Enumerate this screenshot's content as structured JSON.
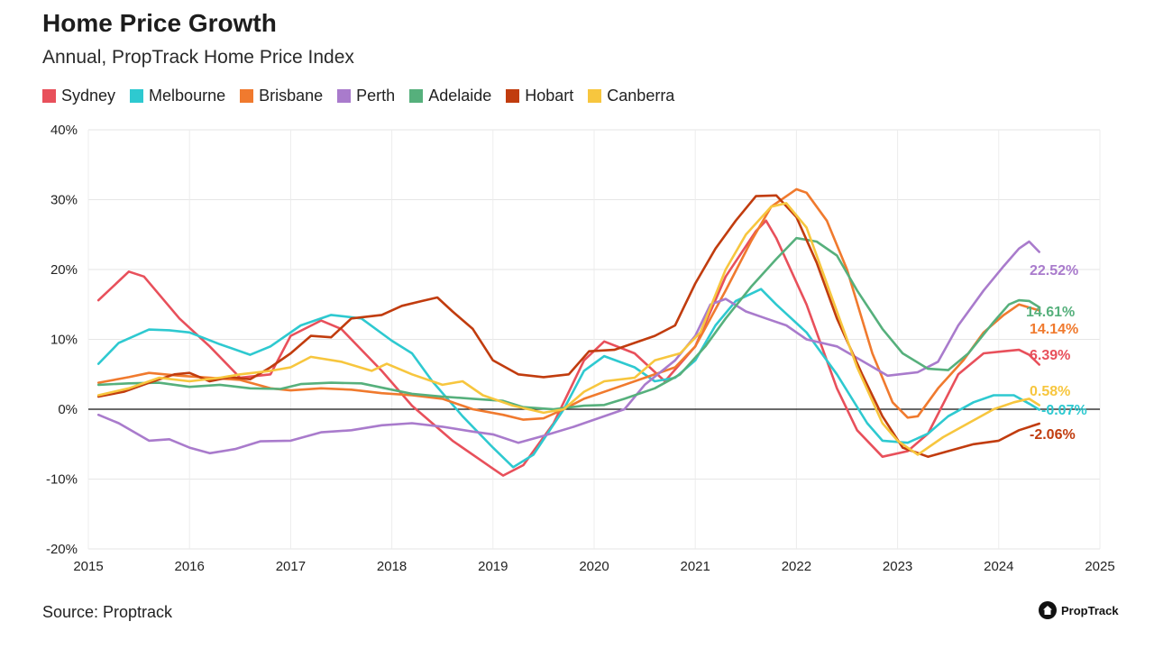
{
  "header": {
    "title": "Home Price Growth",
    "subtitle": "Annual, PropTrack Home Price Index"
  },
  "footer": {
    "source": "Source: Proptrack",
    "brand": "PropTrack",
    "brand_icon": "house-icon"
  },
  "chart_data": {
    "type": "line",
    "title": "Home Price Growth",
    "subtitle": "Annual, PropTrack Home Price Index",
    "xlim": [
      2015,
      2025
    ],
    "ylim": [
      -20,
      40
    ],
    "x_ticks": [
      "2015",
      "2016",
      "2017",
      "2018",
      "2019",
      "2020",
      "2021",
      "2022",
      "2023",
      "2024",
      "2025"
    ],
    "y_ticks": [
      "40%",
      "30%",
      "20%",
      "10%",
      "0%",
      "-10%",
      "-20%"
    ],
    "grid": true,
    "legend_position": "top-left",
    "series": [
      {
        "name": "Sydney",
        "color": "#e8505b",
        "end_label": "6.39%",
        "points": [
          [
            2015.1,
            15.6
          ],
          [
            2015.4,
            19.7
          ],
          [
            2015.55,
            19.0
          ],
          [
            2015.9,
            13.0
          ],
          [
            2016.2,
            9.0
          ],
          [
            2016.5,
            4.5
          ],
          [
            2016.8,
            5.0
          ],
          [
            2017.0,
            10.5
          ],
          [
            2017.3,
            12.7
          ],
          [
            2017.5,
            11.5
          ],
          [
            2017.9,
            5.5
          ],
          [
            2018.2,
            0.5
          ],
          [
            2018.6,
            -4.5
          ],
          [
            2019.0,
            -8.5
          ],
          [
            2019.1,
            -9.5
          ],
          [
            2019.3,
            -8.0
          ],
          [
            2019.6,
            -2.0
          ],
          [
            2019.9,
            7.0
          ],
          [
            2020.1,
            9.7
          ],
          [
            2020.4,
            8.0
          ],
          [
            2020.7,
            4.0
          ],
          [
            2021.0,
            9.0
          ],
          [
            2021.3,
            19.0
          ],
          [
            2021.6,
            25.5
          ],
          [
            2021.7,
            27.0
          ],
          [
            2021.8,
            24.5
          ],
          [
            2022.1,
            15.0
          ],
          [
            2022.4,
            3.0
          ],
          [
            2022.6,
            -3.0
          ],
          [
            2022.85,
            -6.8
          ],
          [
            2023.1,
            -6.0
          ],
          [
            2023.3,
            -3.5
          ],
          [
            2023.6,
            5.0
          ],
          [
            2023.85,
            8.0
          ],
          [
            2024.05,
            8.3
          ],
          [
            2024.2,
            8.5
          ],
          [
            2024.3,
            7.8
          ],
          [
            2024.4,
            6.39
          ]
        ]
      },
      {
        "name": "Melbourne",
        "color": "#2ec9d0",
        "end_label": "-0.07%",
        "points": [
          [
            2015.1,
            6.5
          ],
          [
            2015.3,
            9.5
          ],
          [
            2015.6,
            11.4
          ],
          [
            2015.8,
            11.3
          ],
          [
            2016.0,
            11.0
          ],
          [
            2016.3,
            9.3
          ],
          [
            2016.6,
            7.8
          ],
          [
            2016.8,
            9.0
          ],
          [
            2017.1,
            12.0
          ],
          [
            2017.4,
            13.5
          ],
          [
            2017.7,
            13.0
          ],
          [
            2018.0,
            9.8
          ],
          [
            2018.2,
            8.0
          ],
          [
            2018.4,
            4.0
          ],
          [
            2018.7,
            -1.0
          ],
          [
            2019.0,
            -5.5
          ],
          [
            2019.2,
            -8.3
          ],
          [
            2019.4,
            -6.5
          ],
          [
            2019.7,
            0.0
          ],
          [
            2019.9,
            5.5
          ],
          [
            2020.1,
            7.6
          ],
          [
            2020.4,
            6.0
          ],
          [
            2020.6,
            4.0
          ],
          [
            2020.8,
            4.5
          ],
          [
            2021.0,
            7.0
          ],
          [
            2021.2,
            12.0
          ],
          [
            2021.4,
            15.5
          ],
          [
            2021.65,
            17.2
          ],
          [
            2021.8,
            15.0
          ],
          [
            2022.1,
            11.0
          ],
          [
            2022.4,
            5.0
          ],
          [
            2022.7,
            -2.0
          ],
          [
            2022.85,
            -4.5
          ],
          [
            2023.1,
            -4.8
          ],
          [
            2023.3,
            -3.5
          ],
          [
            2023.5,
            -1.0
          ],
          [
            2023.75,
            1.0
          ],
          [
            2023.95,
            2.0
          ],
          [
            2024.15,
            2.0
          ],
          [
            2024.3,
            0.8
          ],
          [
            2024.4,
            -0.07
          ]
        ]
      },
      {
        "name": "Brisbane",
        "color": "#f07a2e",
        "end_label": "14.14%",
        "points": [
          [
            2015.1,
            3.8
          ],
          [
            2015.4,
            4.6
          ],
          [
            2015.6,
            5.2
          ],
          [
            2015.9,
            4.8
          ],
          [
            2016.2,
            4.5
          ],
          [
            2016.5,
            4.2
          ],
          [
            2016.8,
            3.0
          ],
          [
            2017.0,
            2.7
          ],
          [
            2017.3,
            3.0
          ],
          [
            2017.6,
            2.8
          ],
          [
            2017.9,
            2.3
          ],
          [
            2018.2,
            2.0
          ],
          [
            2018.5,
            1.5
          ],
          [
            2018.8,
            0.0
          ],
          [
            2019.1,
            -0.8
          ],
          [
            2019.3,
            -1.5
          ],
          [
            2019.5,
            -1.3
          ],
          [
            2019.7,
            0.0
          ],
          [
            2019.9,
            1.5
          ],
          [
            2020.2,
            3.0
          ],
          [
            2020.5,
            4.5
          ],
          [
            2020.8,
            6.0
          ],
          [
            2021.0,
            9.0
          ],
          [
            2021.3,
            17.0
          ],
          [
            2021.55,
            24.0
          ],
          [
            2021.75,
            29.0
          ],
          [
            2022.0,
            31.5
          ],
          [
            2022.1,
            31.0
          ],
          [
            2022.3,
            27.0
          ],
          [
            2022.5,
            20.0
          ],
          [
            2022.75,
            8.0
          ],
          [
            2022.95,
            1.0
          ],
          [
            2023.1,
            -1.2
          ],
          [
            2023.2,
            -1.0
          ],
          [
            2023.4,
            3.0
          ],
          [
            2023.65,
            7.0
          ],
          [
            2023.85,
            11.0
          ],
          [
            2024.05,
            13.5
          ],
          [
            2024.2,
            15.0
          ],
          [
            2024.4,
            14.14
          ]
        ]
      },
      {
        "name": "Perth",
        "color": "#a97bcc",
        "end_label": "22.52%",
        "points": [
          [
            2015.1,
            -0.8
          ],
          [
            2015.3,
            -2.0
          ],
          [
            2015.6,
            -4.5
          ],
          [
            2015.8,
            -4.3
          ],
          [
            2016.0,
            -5.5
          ],
          [
            2016.2,
            -6.3
          ],
          [
            2016.45,
            -5.7
          ],
          [
            2016.7,
            -4.6
          ],
          [
            2017.0,
            -4.5
          ],
          [
            2017.3,
            -3.3
          ],
          [
            2017.6,
            -3.0
          ],
          [
            2017.9,
            -2.3
          ],
          [
            2018.2,
            -2.0
          ],
          [
            2018.5,
            -2.5
          ],
          [
            2018.8,
            -3.2
          ],
          [
            2019.0,
            -3.6
          ],
          [
            2019.25,
            -4.8
          ],
          [
            2019.5,
            -3.8
          ],
          [
            2019.8,
            -2.5
          ],
          [
            2020.0,
            -1.5
          ],
          [
            2020.3,
            0.0
          ],
          [
            2020.5,
            3.5
          ],
          [
            2020.8,
            7.0
          ],
          [
            2021.0,
            10.5
          ],
          [
            2021.15,
            15.0
          ],
          [
            2021.3,
            15.8
          ],
          [
            2021.5,
            14.0
          ],
          [
            2021.7,
            13.0
          ],
          [
            2021.9,
            12.0
          ],
          [
            2022.1,
            10.0
          ],
          [
            2022.4,
            9.0
          ],
          [
            2022.7,
            6.5
          ],
          [
            2022.9,
            4.8
          ],
          [
            2023.2,
            5.3
          ],
          [
            2023.4,
            6.8
          ],
          [
            2023.6,
            12.0
          ],
          [
            2023.85,
            17.0
          ],
          [
            2024.05,
            20.5
          ],
          [
            2024.2,
            23.0
          ],
          [
            2024.3,
            24.0
          ],
          [
            2024.4,
            22.52
          ]
        ]
      },
      {
        "name": "Adelaide",
        "color": "#56b07c",
        "end_label": "14.61%",
        "points": [
          [
            2015.1,
            3.5
          ],
          [
            2015.4,
            3.7
          ],
          [
            2015.7,
            3.8
          ],
          [
            2016.0,
            3.2
          ],
          [
            2016.3,
            3.5
          ],
          [
            2016.6,
            3.0
          ],
          [
            2016.9,
            2.9
          ],
          [
            2017.1,
            3.6
          ],
          [
            2017.4,
            3.8
          ],
          [
            2017.7,
            3.7
          ],
          [
            2018.0,
            2.8
          ],
          [
            2018.2,
            2.2
          ],
          [
            2018.5,
            1.8
          ],
          [
            2018.8,
            1.5
          ],
          [
            2019.1,
            1.2
          ],
          [
            2019.3,
            0.3
          ],
          [
            2019.6,
            0.0
          ],
          [
            2019.9,
            0.5
          ],
          [
            2020.1,
            0.6
          ],
          [
            2020.3,
            1.5
          ],
          [
            2020.6,
            3.0
          ],
          [
            2020.85,
            5.0
          ],
          [
            2021.1,
            9.0
          ],
          [
            2021.3,
            13.0
          ],
          [
            2021.55,
            17.5
          ],
          [
            2021.8,
            21.5
          ],
          [
            2022.0,
            24.5
          ],
          [
            2022.2,
            24.0
          ],
          [
            2022.4,
            22.0
          ],
          [
            2022.6,
            17.0
          ],
          [
            2022.85,
            11.5
          ],
          [
            2023.05,
            8.0
          ],
          [
            2023.3,
            5.8
          ],
          [
            2023.5,
            5.6
          ],
          [
            2023.7,
            8.0
          ],
          [
            2023.95,
            12.5
          ],
          [
            2024.1,
            15.0
          ],
          [
            2024.2,
            15.6
          ],
          [
            2024.3,
            15.5
          ],
          [
            2024.4,
            14.61
          ]
        ]
      },
      {
        "name": "Hobart",
        "color": "#c13c0e",
        "end_label": "-2.06%",
        "points": [
          [
            2015.1,
            1.8
          ],
          [
            2015.35,
            2.5
          ],
          [
            2015.6,
            3.8
          ],
          [
            2015.85,
            5.0
          ],
          [
            2016.0,
            5.2
          ],
          [
            2016.2,
            4.0
          ],
          [
            2016.4,
            4.6
          ],
          [
            2016.6,
            4.3
          ],
          [
            2016.8,
            6.0
          ],
          [
            2017.0,
            8.0
          ],
          [
            2017.2,
            10.5
          ],
          [
            2017.4,
            10.3
          ],
          [
            2017.6,
            13.0
          ],
          [
            2017.9,
            13.5
          ],
          [
            2018.1,
            14.8
          ],
          [
            2018.3,
            15.5
          ],
          [
            2018.45,
            16.0
          ],
          [
            2018.6,
            14.0
          ],
          [
            2018.8,
            11.5
          ],
          [
            2019.0,
            7.0
          ],
          [
            2019.25,
            5.0
          ],
          [
            2019.5,
            4.6
          ],
          [
            2019.75,
            5.0
          ],
          [
            2019.95,
            8.3
          ],
          [
            2020.2,
            8.5
          ],
          [
            2020.4,
            9.5
          ],
          [
            2020.6,
            10.5
          ],
          [
            2020.8,
            12.0
          ],
          [
            2021.0,
            18.0
          ],
          [
            2021.2,
            23.0
          ],
          [
            2021.4,
            27.0
          ],
          [
            2021.6,
            30.5
          ],
          [
            2021.8,
            30.6
          ],
          [
            2022.0,
            27.5
          ],
          [
            2022.2,
            21.0
          ],
          [
            2022.4,
            13.0
          ],
          [
            2022.65,
            5.0
          ],
          [
            2022.85,
            -1.0
          ],
          [
            2023.05,
            -5.5
          ],
          [
            2023.3,
            -6.8
          ],
          [
            2023.5,
            -6.0
          ],
          [
            2023.75,
            -5.0
          ],
          [
            2024.0,
            -4.5
          ],
          [
            2024.2,
            -3.0
          ],
          [
            2024.4,
            -2.06
          ]
        ]
      },
      {
        "name": "Canberra",
        "color": "#f7c63e",
        "end_label": "0.58%",
        "points": [
          [
            2015.1,
            2.0
          ],
          [
            2015.4,
            3.0
          ],
          [
            2015.7,
            4.5
          ],
          [
            2016.0,
            4.0
          ],
          [
            2016.3,
            4.5
          ],
          [
            2016.5,
            5.0
          ],
          [
            2016.8,
            5.5
          ],
          [
            2017.0,
            6.0
          ],
          [
            2017.2,
            7.5
          ],
          [
            2017.5,
            6.8
          ],
          [
            2017.8,
            5.5
          ],
          [
            2017.95,
            6.5
          ],
          [
            2018.2,
            5.0
          ],
          [
            2018.5,
            3.5
          ],
          [
            2018.7,
            4.0
          ],
          [
            2018.9,
            2.0
          ],
          [
            2019.2,
            0.5
          ],
          [
            2019.5,
            -0.5
          ],
          [
            2019.7,
            0.0
          ],
          [
            2019.9,
            2.5
          ],
          [
            2020.1,
            4.0
          ],
          [
            2020.4,
            4.5
          ],
          [
            2020.6,
            7.0
          ],
          [
            2020.85,
            8.0
          ],
          [
            2021.05,
            11.0
          ],
          [
            2021.3,
            20.0
          ],
          [
            2021.5,
            25.0
          ],
          [
            2021.75,
            29.0
          ],
          [
            2021.9,
            29.5
          ],
          [
            2022.1,
            26.0
          ],
          [
            2022.3,
            18.0
          ],
          [
            2022.6,
            6.0
          ],
          [
            2022.85,
            -2.0
          ],
          [
            2023.0,
            -4.5
          ],
          [
            2023.2,
            -6.5
          ],
          [
            2023.45,
            -4.0
          ],
          [
            2023.7,
            -2.0
          ],
          [
            2023.95,
            0.0
          ],
          [
            2024.15,
            1.0
          ],
          [
            2024.3,
            1.5
          ],
          [
            2024.4,
            0.58
          ]
        ]
      }
    ]
  }
}
